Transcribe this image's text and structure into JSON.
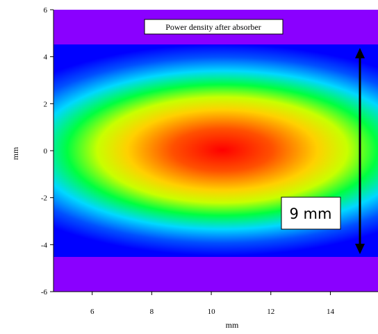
{
  "chart_data": {
    "type": "heatmap",
    "title": "Power density after absorber",
    "xlabel": "mm",
    "ylabel": "mm",
    "xlim": [
      4.7,
      15.6
    ],
    "ylim": [
      -6,
      6
    ],
    "x_ticks": [
      6,
      8,
      10,
      12,
      14
    ],
    "y_ticks": [
      -6,
      -4,
      -2,
      0,
      2,
      4,
      6
    ],
    "colormap": [
      "#8a00ff",
      "#0000ff",
      "#00c8ff",
      "#00ff00",
      "#ffff00",
      "#ff8000",
      "#ff0000"
    ],
    "background_color": "#8a00ff",
    "band_y_range": [
      -4.5,
      4.5
    ],
    "peak_center": [
      9.3,
      0
    ],
    "annotation": {
      "text": "9 mm",
      "arrow_x": 14.1,
      "arrow_y": [
        -4.5,
        4.5
      ]
    },
    "grid": false,
    "legend": "none"
  }
}
